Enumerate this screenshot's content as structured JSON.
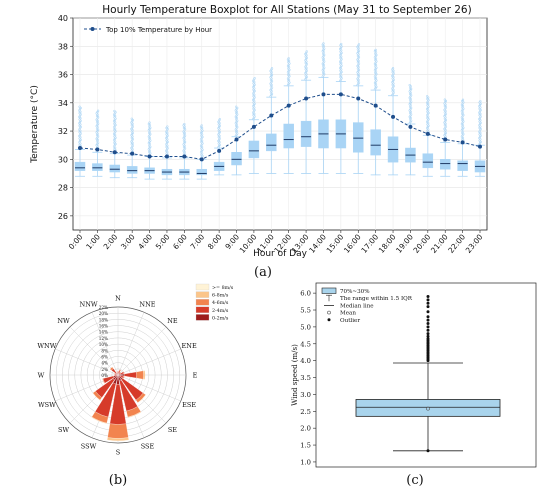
{
  "panels": {
    "a_label": "(a)",
    "b_label": "(b)",
    "c_label": "(c)"
  },
  "chart_data": [
    {
      "id": "a",
      "type": "box",
      "title": "Hourly Temperature Boxplot for All Stations (May 31 to September 26)",
      "xlabel": "Hour of Day",
      "ylabel": "Temperature (°C)",
      "ylim": [
        25,
        40
      ],
      "yticks": [
        26,
        28,
        30,
        32,
        34,
        36,
        38,
        40
      ],
      "grid": true,
      "legend": {
        "position": "top-left",
        "entries": [
          "Top 10% Temperature by Hour"
        ]
      },
      "box_color": "#a9d4f5",
      "line_color": "#1f4e8c",
      "categories": [
        "0:00",
        "1:00",
        "2:00",
        "3:00",
        "4:00",
        "5:00",
        "6:00",
        "7:00",
        "8:00",
        "9:00",
        "10:00",
        "11:00",
        "12:00",
        "13:00",
        "14:00",
        "15:00",
        "16:00",
        "17:00",
        "18:00",
        "19:00",
        "20:00",
        "21:00",
        "22:00",
        "23:00"
      ],
      "boxes": [
        {
          "min": 28.8,
          "q1": 29.2,
          "median": 29.4,
          "q3": 29.8,
          "max": 30.7,
          "fmax": 33.8
        },
        {
          "min": 28.8,
          "q1": 29.2,
          "median": 29.4,
          "q3": 29.7,
          "max": 30.5,
          "fmax": 33.5
        },
        {
          "min": 28.7,
          "q1": 29.1,
          "median": 29.3,
          "q3": 29.6,
          "max": 30.4,
          "fmax": 33.5
        },
        {
          "min": 28.7,
          "q1": 29.0,
          "median": 29.2,
          "q3": 29.5,
          "max": 30.3,
          "fmax": 32.9
        },
        {
          "min": 28.6,
          "q1": 29.0,
          "median": 29.2,
          "q3": 29.4,
          "max": 30.2,
          "fmax": 32.6
        },
        {
          "min": 28.6,
          "q1": 28.9,
          "median": 29.1,
          "q3": 29.3,
          "max": 30.1,
          "fmax": 32.4
        },
        {
          "min": 28.6,
          "q1": 28.9,
          "median": 29.1,
          "q3": 29.3,
          "max": 30.1,
          "fmax": 32.5
        },
        {
          "min": 28.6,
          "q1": 28.9,
          "median": 29.0,
          "q3": 29.3,
          "max": 30.0,
          "fmax": 32.4
        },
        {
          "min": 28.9,
          "q1": 29.2,
          "median": 29.5,
          "q3": 29.8,
          "max": 30.8,
          "fmax": 32.9
        },
        {
          "min": 28.9,
          "q1": 29.6,
          "median": 30.0,
          "q3": 30.5,
          "max": 31.6,
          "fmax": 33.8
        },
        {
          "min": 29.0,
          "q1": 30.1,
          "median": 30.6,
          "q3": 31.3,
          "max": 32.8,
          "fmax": 35.8
        },
        {
          "min": 29.0,
          "q1": 30.6,
          "median": 31.0,
          "q3": 31.8,
          "max": 34.4,
          "fmax": 36.5
        },
        {
          "min": 29.0,
          "q1": 30.8,
          "median": 31.4,
          "q3": 32.5,
          "max": 35.2,
          "fmax": 37.2
        },
        {
          "min": 29.0,
          "q1": 30.9,
          "median": 31.6,
          "q3": 32.7,
          "max": 35.6,
          "fmax": 37.7
        },
        {
          "min": 29.0,
          "q1": 30.8,
          "median": 31.8,
          "q3": 32.8,
          "max": 35.8,
          "fmax": 38.2
        },
        {
          "min": 29.0,
          "q1": 30.8,
          "median": 31.8,
          "q3": 32.8,
          "max": 35.5,
          "fmax": 38.2
        },
        {
          "min": 29.0,
          "q1": 30.5,
          "median": 31.5,
          "q3": 32.6,
          "max": 35.2,
          "fmax": 38.2
        },
        {
          "min": 28.9,
          "q1": 30.3,
          "median": 31.0,
          "q3": 32.1,
          "max": 34.9,
          "fmax": 37.8
        },
        {
          "min": 28.9,
          "q1": 29.8,
          "median": 30.7,
          "q3": 31.6,
          "max": 34.5,
          "fmax": 36.5
        },
        {
          "min": 28.9,
          "q1": 29.8,
          "median": 30.3,
          "q3": 30.8,
          "max": 32.5,
          "fmax": 35.3
        },
        {
          "min": 28.8,
          "q1": 29.4,
          "median": 29.8,
          "q3": 30.4,
          "max": 31.7,
          "fmax": 34.5
        },
        {
          "min": 28.8,
          "q1": 29.3,
          "median": 29.7,
          "q3": 30.0,
          "max": 31.2,
          "fmax": 34.3
        },
        {
          "min": 28.8,
          "q1": 29.2,
          "median": 29.7,
          "q3": 29.9,
          "max": 31.1,
          "fmax": 34.3
        },
        {
          "min": 28.8,
          "q1": 29.1,
          "median": 29.5,
          "q3": 29.9,
          "max": 31.0,
          "fmax": 34.2
        }
      ],
      "series": [
        {
          "name": "Top 10% Temperature by Hour",
          "values": [
            30.8,
            30.7,
            30.5,
            30.4,
            30.2,
            30.2,
            30.2,
            30.0,
            30.6,
            31.4,
            32.3,
            33.1,
            33.8,
            34.3,
            34.6,
            34.6,
            34.3,
            33.8,
            33.0,
            32.3,
            31.8,
            31.4,
            31.2,
            30.9
          ]
        }
      ]
    },
    {
      "id": "b",
      "type": "windrose",
      "directions": [
        "N",
        "NNE",
        "NE",
        "ENE",
        "E",
        "ESE",
        "SE",
        "SSE",
        "S",
        "SSW",
        "SW",
        "WSW",
        "W",
        "WNW",
        "NW",
        "NNW"
      ],
      "rmax": 22,
      "rings": [
        "0%",
        "2%",
        "4%",
        "6%",
        "8%",
        "10%",
        "12%",
        "14%",
        "16%",
        "18%",
        "20%",
        "22%"
      ],
      "speed_bins": [
        "0-2m/s",
        "2-4m/s",
        "4-6m/s",
        "6-8m/s",
        ">= 8m/s"
      ],
      "legend_order": [
        ">= 8m/s",
        "6-8m/s",
        "4-6m/s",
        "2-4m/s",
        "0-2m/s"
      ],
      "bin_colors": [
        "#9e1c1c",
        "#d63b2a",
        "#f2844f",
        "#fbc58a",
        "#fff3d6"
      ],
      "values": [
        [
          0.6,
          0.6,
          0.1,
          0,
          0
        ],
        [
          0.5,
          0.9,
          0.4,
          0,
          0
        ],
        [
          0.5,
          0.6,
          0.1,
          0,
          0
        ],
        [
          0.8,
          1.2,
          0.2,
          0,
          0
        ],
        [
          2.0,
          4.0,
          2.3,
          0.5,
          0
        ],
        [
          0.8,
          1.2,
          0.2,
          0,
          0
        ],
        [
          1.8,
          8.2,
          1.0,
          0.1,
          0
        ],
        [
          2.0,
          10.0,
          2.0,
          0.2,
          0
        ],
        [
          3.0,
          13.0,
          4.5,
          0.8,
          0
        ],
        [
          3.0,
          11.0,
          2.0,
          0.2,
          0
        ],
        [
          2.0,
          7.0,
          1.0,
          0.1,
          0
        ],
        [
          1.5,
          3.5,
          0.2,
          0,
          0
        ],
        [
          0.6,
          0.6,
          0.1,
          0,
          0
        ],
        [
          0.4,
          0.7,
          0.1,
          0,
          0
        ],
        [
          0.8,
          1.8,
          0.6,
          0,
          0
        ],
        [
          0.3,
          0.5,
          0.1,
          0,
          0
        ]
      ]
    },
    {
      "id": "c",
      "type": "box",
      "ylabel": "Wind speed (m/s)",
      "ylim": [
        0.85,
        6.3
      ],
      "yticks": [
        "1.0",
        "1.5",
        "2.0",
        "2.5",
        "3.0",
        "3.5",
        "4.0",
        "4.5",
        "5.0",
        "5.5",
        "6.0"
      ],
      "box_color": "#a9d4ec",
      "box": {
        "whisker_low": 1.33,
        "q1": 2.35,
        "median": 2.62,
        "q3": 2.85,
        "whisker_high": 3.93,
        "mean": 2.58
      },
      "outliers": [
        4.0,
        4.05,
        4.1,
        4.15,
        4.2,
        4.25,
        4.3,
        4.35,
        4.4,
        4.45,
        4.5,
        4.55,
        4.6,
        4.65,
        4.72,
        4.8,
        4.9,
        5.0,
        5.1,
        5.2,
        5.3,
        5.45,
        5.6,
        5.7,
        5.8,
        5.9
      ],
      "legend": {
        "position": "top-left",
        "entries": [
          "70%~30%",
          "The range within 1.5 IQR",
          "Median line",
          "Mean",
          "Outlier"
        ]
      }
    }
  ]
}
